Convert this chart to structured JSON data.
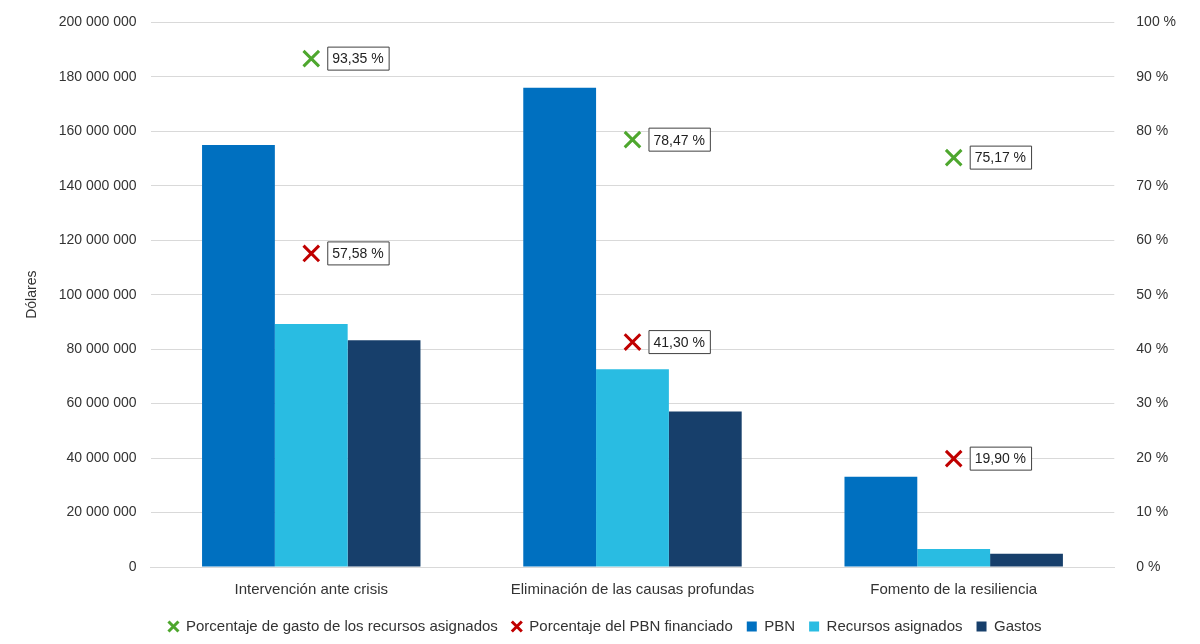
{
  "chart_data": {
    "type": "bar",
    "ylabel": "Dólares",
    "categories": [
      "Intervención ante crisis",
      "Eliminación de las causas profundas",
      "Fomento de la resiliencia"
    ],
    "series": [
      {
        "name": "PBN",
        "color": "#0070c0",
        "values": [
          155000000,
          176000000,
          33100000
        ]
      },
      {
        "name": "Recursos asignados",
        "color": "#29bce2",
        "values": [
          89200000,
          72600000,
          6600000
        ]
      },
      {
        "name": "Gastos",
        "color": "#173f6b",
        "values": [
          83300000,
          57100000,
          4900000
        ]
      },
      {
        "name": "Porcentaje de gasto de los recursos asignados",
        "type": "scatter",
        "axis": "y2",
        "color": "#4ea72e",
        "values": [
          93.35,
          78.47,
          75.17
        ],
        "value_labels": [
          "93,35 %",
          "78,47 %",
          "75,17 %"
        ]
      },
      {
        "name": "Porcentaje del PBN financiado",
        "type": "scatter",
        "axis": "y2",
        "color": "#c00000",
        "values": [
          57.58,
          41.3,
          19.9
        ],
        "value_labels": [
          "57,58 %",
          "41,30 %",
          "19,90 %"
        ]
      }
    ],
    "ylim": [
      0,
      200000000
    ],
    "yticks": [
      {
        "value": 0,
        "label": "0"
      },
      {
        "value": 20000000,
        "label": "20 000 000"
      },
      {
        "value": 40000000,
        "label": "40 000 000"
      },
      {
        "value": 60000000,
        "label": "60 000 000"
      },
      {
        "value": 80000000,
        "label": "80 000 000"
      },
      {
        "value": 100000000,
        "label": "100 000 000"
      },
      {
        "value": 120000000,
        "label": "120 000 000"
      },
      {
        "value": 140000000,
        "label": "140 000 000"
      },
      {
        "value": 160000000,
        "label": "160 000 000"
      },
      {
        "value": 180000000,
        "label": "180 000 000"
      },
      {
        "value": 200000000,
        "label": "200 000 000"
      }
    ],
    "y2lim": [
      0,
      100
    ],
    "y2ticks": [
      {
        "value": 0,
        "label": "0 %"
      },
      {
        "value": 10,
        "label": "10 %"
      },
      {
        "value": 20,
        "label": "20 %"
      },
      {
        "value": 30,
        "label": "30 %"
      },
      {
        "value": 40,
        "label": "40 %"
      },
      {
        "value": 50,
        "label": "50 %"
      },
      {
        "value": 60,
        "label": "60 %"
      },
      {
        "value": 70,
        "label": "70 %"
      },
      {
        "value": 80,
        "label": "80 %"
      },
      {
        "value": 90,
        "label": "90 %"
      },
      {
        "value": 100,
        "label": "100 %"
      }
    ],
    "grid": "y",
    "legend": "bottom",
    "marker": "cross"
  }
}
